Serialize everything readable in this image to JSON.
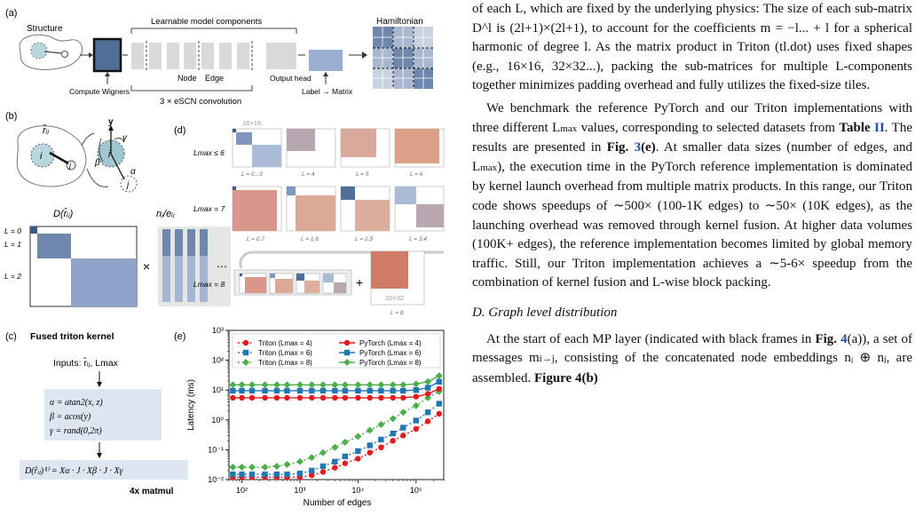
{
  "figure": {
    "panel_labels": {
      "a": "(a)",
      "b": "(b)",
      "c": "(c)",
      "d": "(d)",
      "e": "(e)"
    },
    "a": {
      "structure": "Structure",
      "learnable": "Learnable model components",
      "hamiltonian": "Hamiltonian",
      "node": "Node",
      "edge": "Edge",
      "output_head": "Output head",
      "compute_wigners": "Compute Wigners",
      "conv": "3 × eSCN convolution",
      "label": "Label → Matrix"
    },
    "b": {
      "r_hat": "r̂ᵢⱼ",
      "i": "i",
      "j": "j",
      "axis_y": "y",
      "alpha": "α",
      "beta": "β",
      "gamma": "γ",
      "d_label": "D(r̂ᵢⱼ)",
      "n_label": "nⱼ/eᵢⱼ",
      "times": "×",
      "dots": "⋯",
      "l0": "L = 0",
      "l1": "L = 1",
      "l2": "L = 2"
    },
    "c": {
      "title": "Fused triton kernel",
      "inputs": "Inputs: r̂ᵢⱼ, Lmax",
      "eq_alpha": "α = atan2(x, z)",
      "eq_beta": "β = acos(y)",
      "eq_gamma": "γ = rand(0,2π)",
      "result": "D(r̂ᵢⱼ)⁽ˡ⁾ = Xα · J · Xβ · J · Xγ",
      "matmul": "4x matmul"
    },
    "d": {
      "size16": "16×16",
      "size32": "32×32",
      "row1": "Lmax ≤ 6",
      "row2": "Lmax = 7",
      "row3": "Lmax = 8",
      "row1_labels": [
        "L = 0...3",
        "L = 4",
        "L = 5",
        "L = 6"
      ],
      "row2_labels": [
        "L = 0,7",
        "L = 1,6",
        "L = 2,5",
        "L = 3,4"
      ],
      "row3_label": "L = 8",
      "plus": "+"
    }
  },
  "chart_data": {
    "type": "line",
    "xlabel": "Number of edges",
    "ylabel": "Latency (ms)",
    "xscale": "log",
    "yscale": "log",
    "xlim": [
      60,
      300000
    ],
    "ylim": [
      0.01,
      1000
    ],
    "x_ticks": [
      {
        "v": 100,
        "t": "10²"
      },
      {
        "v": 1000,
        "t": "10³"
      },
      {
        "v": 10000,
        "t": "10⁴"
      },
      {
        "v": 100000,
        "t": "10⁵"
      }
    ],
    "y_ticks": [
      {
        "v": 0.01,
        "t": "10⁻²"
      },
      {
        "v": 0.1,
        "t": "10⁻¹"
      },
      {
        "v": 1,
        "t": "10⁰"
      },
      {
        "v": 10,
        "t": "10¹"
      },
      {
        "v": 100,
        "t": "10²"
      },
      {
        "v": 1000,
        "t": "10³"
      }
    ],
    "legend_position": "top",
    "x": [
      70,
      100,
      150,
      250,
      400,
      600,
      1000,
      1600,
      2500,
      4000,
      6000,
      10000,
      16000,
      25000,
      40000,
      60000,
      100000,
      160000,
      250000
    ],
    "series": [
      {
        "name": "Triton (Lmax = 4)",
        "color": "#e41a1c",
        "marker": "circle",
        "style": "dotted",
        "values": [
          0.012,
          0.012,
          0.012,
          0.012,
          0.012,
          0.012,
          0.012,
          0.014,
          0.018,
          0.025,
          0.035,
          0.05,
          0.08,
          0.12,
          0.2,
          0.3,
          0.5,
          0.9,
          1.6
        ]
      },
      {
        "name": "Triton (Lmax = 6)",
        "color": "#1f77b4",
        "marker": "square",
        "style": "dotted",
        "values": [
          0.015,
          0.015,
          0.015,
          0.015,
          0.015,
          0.015,
          0.016,
          0.02,
          0.028,
          0.04,
          0.06,
          0.09,
          0.14,
          0.22,
          0.35,
          0.55,
          0.95,
          1.8,
          3.5
        ]
      },
      {
        "name": "Triton (Lmax = 8)",
        "color": "#4daf4a",
        "marker": "diamond",
        "style": "dotted",
        "values": [
          0.026,
          0.026,
          0.026,
          0.026,
          0.028,
          0.032,
          0.04,
          0.055,
          0.08,
          0.12,
          0.18,
          0.28,
          0.45,
          0.7,
          1.1,
          1.8,
          3,
          5.5,
          9
        ]
      },
      {
        "name": "PyTorch (Lmax = 4)",
        "color": "#e41a1c",
        "marker": "circle",
        "style": "solid",
        "values": [
          5.5,
          5.5,
          5.5,
          5.5,
          5.5,
          5.5,
          5.5,
          5.5,
          5.5,
          5.5,
          5.5,
          5.5,
          5.5,
          5.5,
          5.5,
          5.5,
          6,
          7.5,
          11
        ]
      },
      {
        "name": "PyTorch (Lmax = 6)",
        "color": "#1f77b4",
        "marker": "square",
        "style": "solid",
        "values": [
          9.5,
          9.5,
          9.5,
          9.5,
          9.5,
          9.5,
          9.5,
          9.5,
          9.5,
          9.5,
          9.5,
          9.5,
          9.5,
          9.5,
          9.5,
          9.5,
          10,
          12,
          19
        ]
      },
      {
        "name": "PyTorch (Lmax = 8)",
        "color": "#4daf4a",
        "marker": "diamond",
        "style": "solid",
        "values": [
          15,
          15,
          15,
          15,
          15,
          15,
          15,
          15,
          15,
          15,
          15,
          15,
          15,
          15,
          15,
          15,
          16,
          19,
          30
        ]
      }
    ]
  },
  "text": {
    "p1": "of each L, which are fixed by the underlying physics: The size of each sub-matrix D^l is (2l+1)×(2l+1), to account for the coefficients m = −l... + l for a spherical harmonic of degree l. As the matrix product in Triton (tl.dot) uses fixed shapes (e.g., 16×16, 32×32...), packing the sub-matrices for multiple L-components together minimizes padding overhead and fully utilizes the fixed-size tiles.",
    "p2a": "We benchmark the reference PyTorch and our Triton implementations with three different L",
    "p2b": " values, corresponding to selected datasets from ",
    "p2c": "Table ",
    "p2d": "II",
    "p2e": ". The results are presented in ",
    "p2f": "Fig. ",
    "p2g": "3",
    "p2h": "(e)",
    "p2i": ". At smaller data sizes (number of edges, and L",
    "p2j": "), the execution time in the PyTorch reference implementation is dominated by kernel launch overhead from multiple matrix products. In this range, our Triton code shows speedups of ∼500× (100-1K edges) to ∼50× (10K edges), as the launching overhead was removed through kernel fusion. At higher data volumes (100K+ edges), the reference implementation becomes limited by global memory traffic. Still, our Triton implementation achieves a ∼5-6× speedup from the combination of kernel fusion and L-wise block packing.",
    "max": "max",
    "heading": "D. Graph level distribution",
    "p3a": "At the start of each MP layer (indicated with black frames in ",
    "p3b": "Fig. ",
    "p3c": "4",
    "p3d": "(a)), a set of messages m",
    "p3e": "i→j",
    "p3f": ", consisting of the concatenated node embeddings nᵢ ⊕ nⱼ, are assembled. ",
    "p3g": "Figure 4(b)"
  }
}
